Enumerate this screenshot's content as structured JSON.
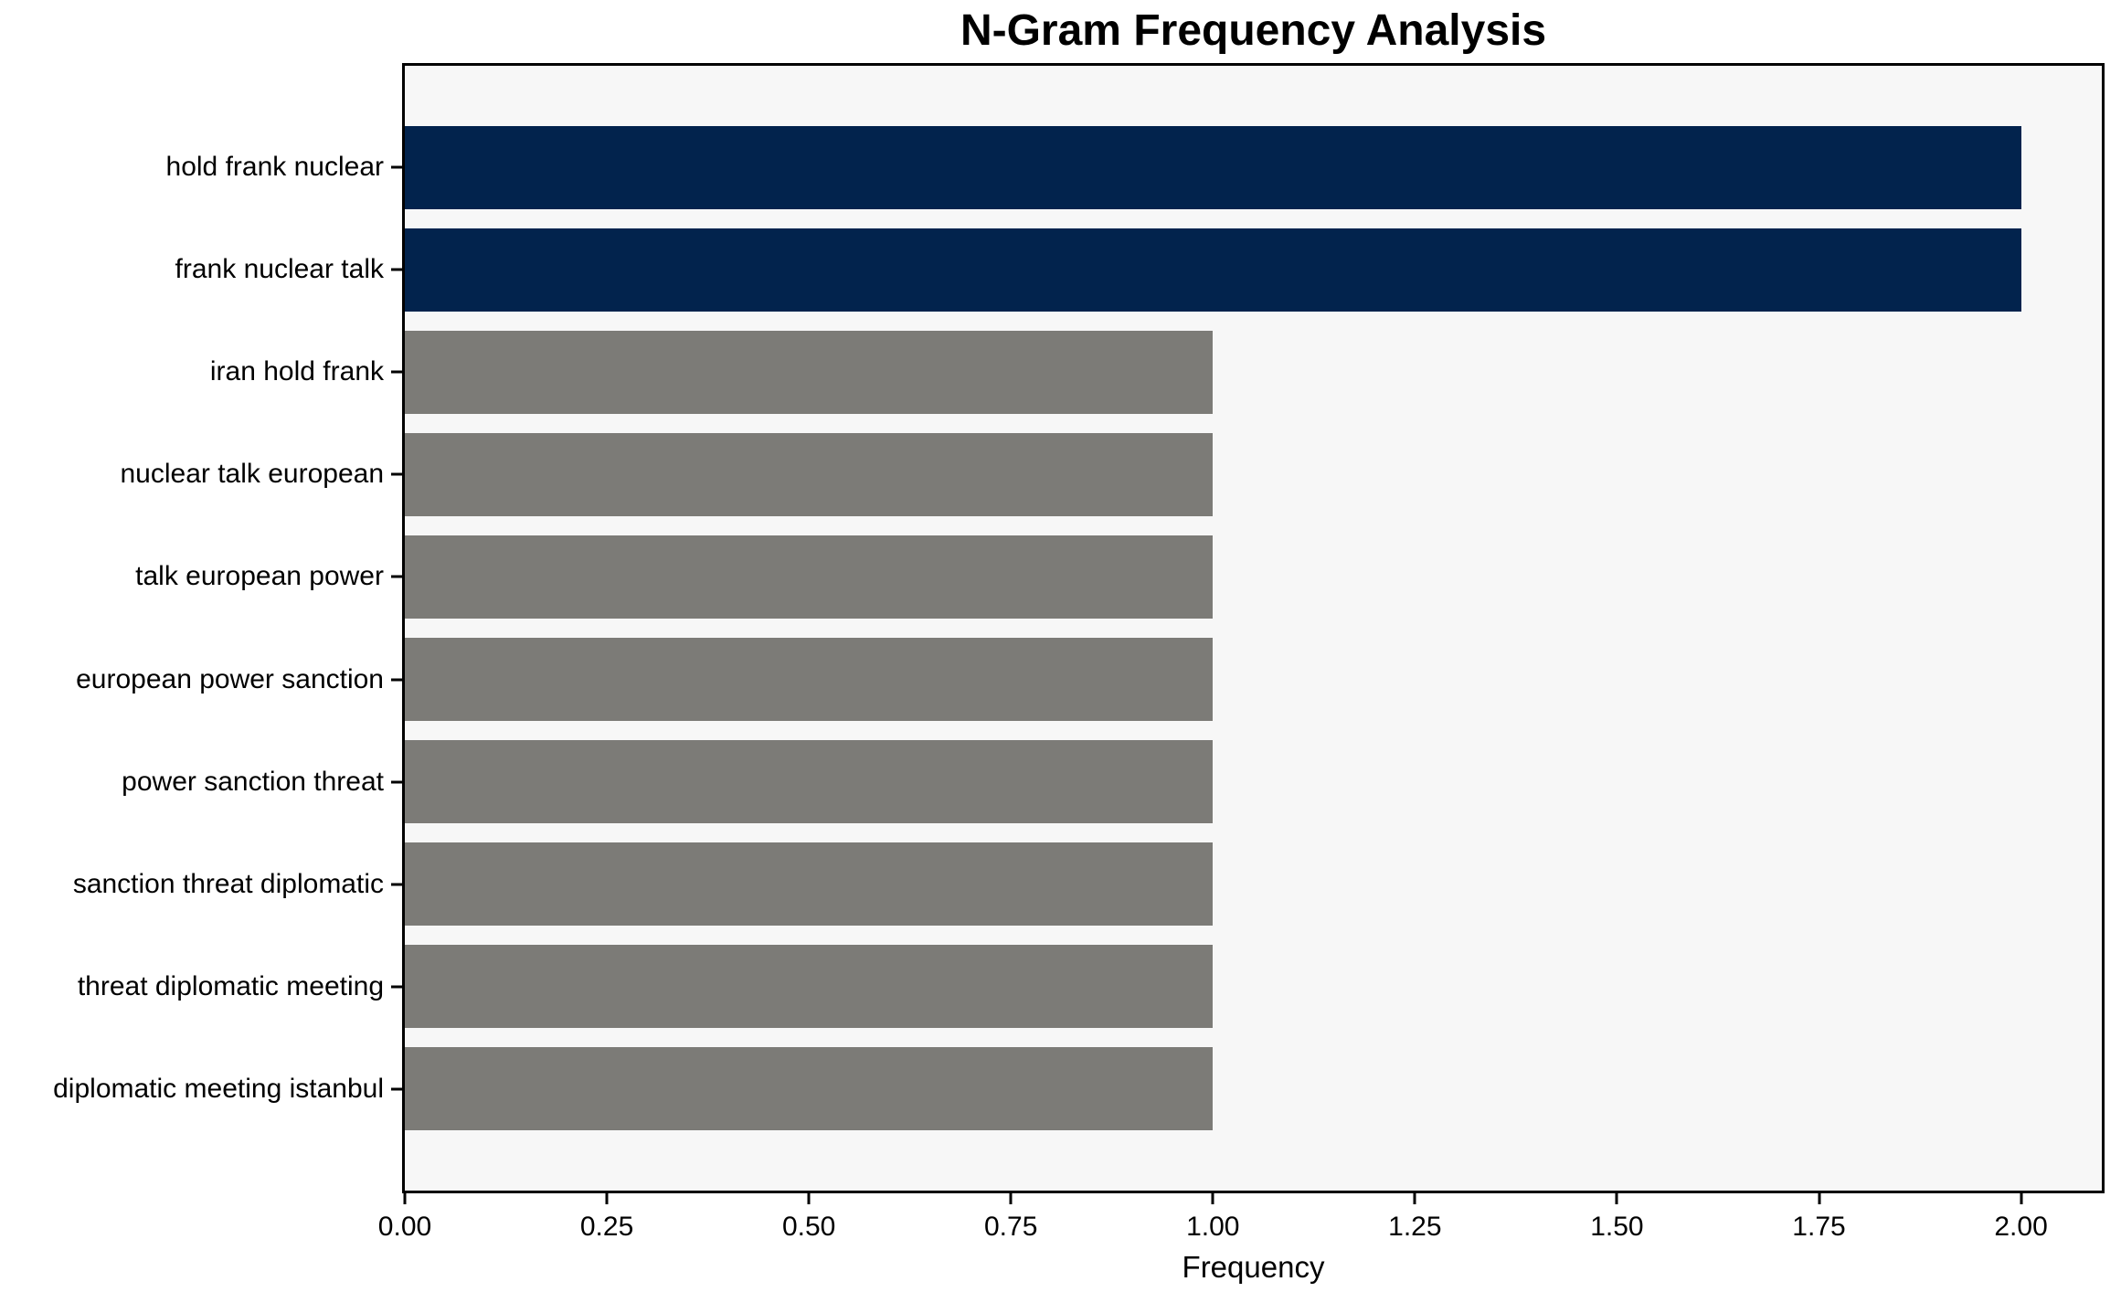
{
  "chart_data": {
    "type": "bar",
    "orientation": "horizontal",
    "title": "N-Gram Frequency Analysis",
    "xlabel": "Frequency",
    "ylabel": "",
    "categories": [
      "hold frank nuclear",
      "frank nuclear talk",
      "iran hold frank",
      "nuclear talk european",
      "talk european power",
      "european power sanction",
      "power sanction threat",
      "sanction threat diplomatic",
      "threat diplomatic meeting",
      "diplomatic meeting istanbul"
    ],
    "values": [
      2,
      2,
      1,
      1,
      1,
      1,
      1,
      1,
      1,
      1
    ],
    "bar_colors": [
      "#02234d",
      "#02234d",
      "#7c7b77",
      "#7c7b77",
      "#7c7b77",
      "#7c7b77",
      "#7c7b77",
      "#7c7b77",
      "#7c7b77",
      "#7c7b77"
    ],
    "highlight_color": "#02234d",
    "base_color": "#7c7b77",
    "plot_background": "#f7f7f7",
    "figure_background": "#ffffff",
    "xlim": [
      0,
      2.1
    ],
    "xticks": [
      0.0,
      0.25,
      0.5,
      0.75,
      1.0,
      1.25,
      1.5,
      1.75,
      2.0
    ],
    "xtick_labels": [
      "0.00",
      "0.25",
      "0.50",
      "0.75",
      "1.00",
      "1.25",
      "1.50",
      "1.75",
      "2.00"
    ],
    "grid": false,
    "legend": null
  }
}
